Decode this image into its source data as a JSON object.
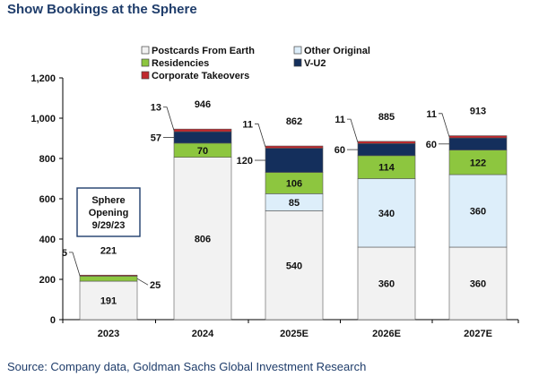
{
  "title": "Show Bookings at the Sphere",
  "source": "Source: Company data, Goldman Sachs Global Investment Research",
  "chart_data": {
    "type": "bar",
    "stacked": true,
    "categories": [
      "2023",
      "2024",
      "2025E",
      "2026E",
      "2027E"
    ],
    "series": [
      {
        "name": "Postcards From Earth",
        "color": "#f2f2f2",
        "values": [
          191,
          806,
          540,
          360,
          360
        ]
      },
      {
        "name": "Other Original",
        "color": "#ddeefa",
        "values": [
          0,
          0,
          85,
          340,
          360
        ]
      },
      {
        "name": "Residencies",
        "color": "#8dc63f",
        "values": [
          25,
          70,
          106,
          114,
          122
        ]
      },
      {
        "name": "V-U2",
        "color": "#142f5c",
        "values": [
          0,
          57,
          120,
          60,
          60
        ]
      },
      {
        "name": "Corporate Takeovers",
        "color": "#c0282d",
        "values": [
          5,
          13,
          11,
          11,
          11
        ]
      }
    ],
    "inside_labels": [
      [
        "191",
        "",
        "",
        "",
        ""
      ],
      [
        "806",
        "",
        "70",
        "",
        ""
      ],
      [
        "540",
        "85",
        "106",
        "",
        ""
      ],
      [
        "360",
        "340",
        "114",
        "",
        ""
      ],
      [
        "360",
        "360",
        "122",
        "",
        ""
      ]
    ],
    "side_labels": [
      [
        {
          "text": "5",
          "series": 4
        },
        {
          "text": "25",
          "series": 2,
          "side": "right"
        }
      ],
      [
        {
          "text": "13",
          "series": 4
        },
        {
          "text": "57",
          "series": 3
        }
      ],
      [
        {
          "text": "11",
          "series": 4
        },
        {
          "text": "120",
          "series": 3
        }
      ],
      [
        {
          "text": "11",
          "series": 4
        },
        {
          "text": "60",
          "series": 3
        }
      ],
      [
        {
          "text": "11",
          "series": 4
        },
        {
          "text": "60",
          "series": 3
        }
      ]
    ],
    "totals": [
      "221",
      "946",
      "862",
      "885",
      "913"
    ],
    "yticks": [
      "0",
      "200",
      "400",
      "600",
      "800",
      "1,000",
      "1,200"
    ],
    "ylim": [
      0,
      1200
    ],
    "ytick_step": 200,
    "legend": {
      "placement": "top-left",
      "entries": [
        {
          "label": "Postcards From Earth",
          "series": 0
        },
        {
          "label": "Other Original",
          "series": 1
        },
        {
          "label": "Residencies",
          "series": 2
        },
        {
          "label": "V-U2",
          "series": 3
        },
        {
          "label": "Corporate Takeovers",
          "series": 4
        }
      ]
    },
    "annotation": {
      "lines": [
        "Sphere",
        "Opening",
        "9/29/23"
      ]
    }
  }
}
